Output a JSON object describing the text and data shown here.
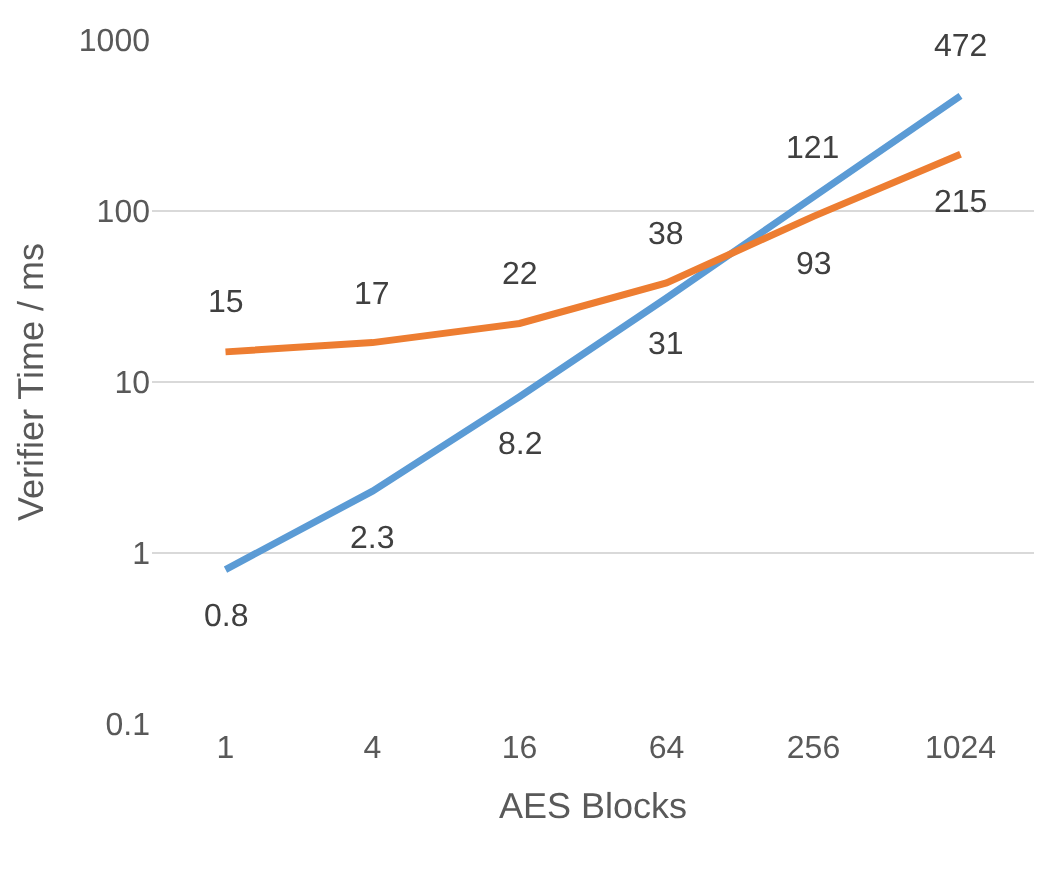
{
  "chart_data": {
    "type": "line",
    "xlabel": "AES Blocks",
    "ylabel": "Verifier Time / ms",
    "categories": [
      "1",
      "4",
      "16",
      "64",
      "256",
      "1024"
    ],
    "series": [
      {
        "color": "#5b9bd5",
        "values": [
          0.8,
          2.3,
          8.2,
          31,
          121,
          472
        ]
      },
      {
        "color": "#ed7d31",
        "values": [
          15,
          17,
          22,
          38,
          93,
          215
        ]
      }
    ],
    "log": true,
    "ylim": [
      0.1,
      1000
    ],
    "yticks": [
      0.1,
      1,
      10,
      100,
      1000
    ],
    "grid": "y",
    "data_labels": true
  }
}
